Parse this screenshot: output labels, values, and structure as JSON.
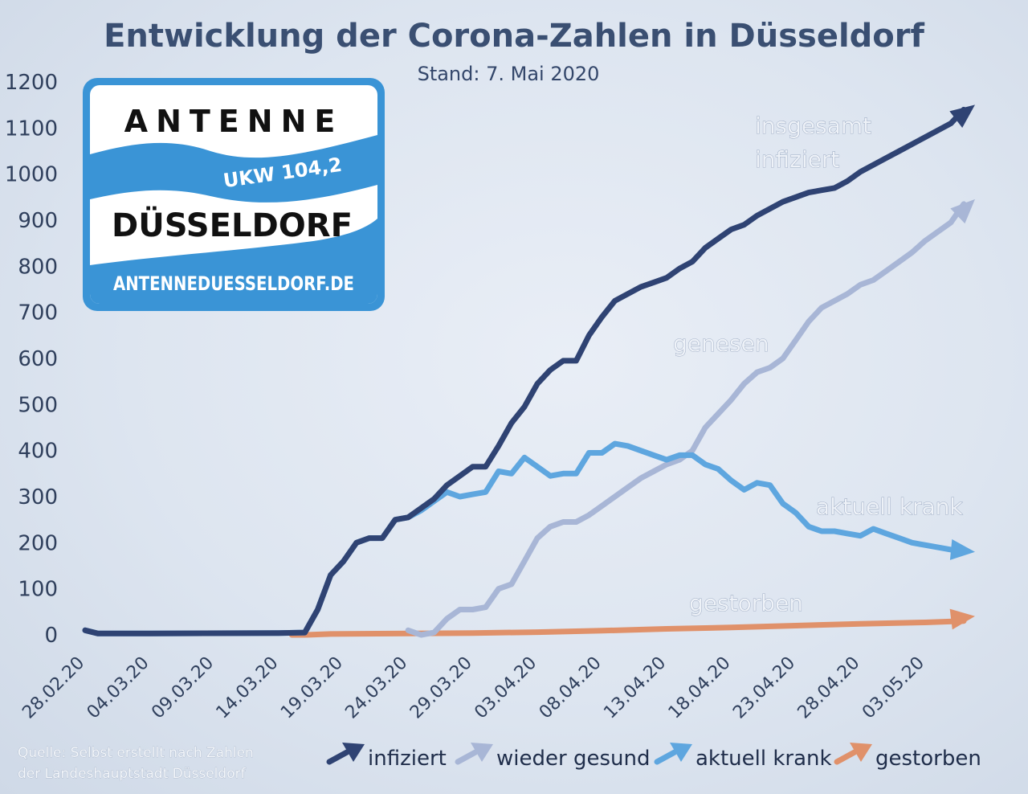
{
  "chart_data": {
    "type": "line",
    "title": "Entwicklung der Corona-Zahlen in Düsseldorf",
    "subtitle": "Stand: 7. Mai 2020",
    "x_tick_labels": [
      "28.02.20",
      "04.03.20",
      "09.03.20",
      "14.03.20",
      "19.03.20",
      "24.03.20",
      "29.03.20",
      "03.04.20",
      "08.04.20",
      "13.04.20",
      "18.04.20",
      "23.04.20",
      "28.04.20",
      "03.05.20"
    ],
    "x_start": "28.02.20",
    "x_end": "06.05.20",
    "ylim": [
      0,
      1200
    ],
    "y_ticks": [
      0,
      100,
      200,
      300,
      400,
      500,
      600,
      700,
      800,
      900,
      1000,
      1100,
      1200
    ],
    "grid": false,
    "legend_position": "bottom-right",
    "series": [
      {
        "name": "infiziert",
        "label": "insgesamt infiziert",
        "label_lines": [
          "insgesamt",
          "infiziert"
        ],
        "color": "#2f4373",
        "points": [
          [
            "28.02.20",
            10
          ],
          [
            "29.02.20",
            3
          ],
          [
            "04.03.20",
            3
          ],
          [
            "14.03.20",
            4
          ],
          [
            "16.03.20",
            5
          ],
          [
            "17.03.20",
            55
          ],
          [
            "18.03.20",
            130
          ],
          [
            "19.03.20",
            160
          ],
          [
            "20.03.20",
            200
          ],
          [
            "21.03.20",
            210
          ],
          [
            "22.03.20",
            210
          ],
          [
            "23.03.20",
            250
          ],
          [
            "24.03.20",
            255
          ],
          [
            "25.03.20",
            275
          ],
          [
            "26.03.20",
            295
          ],
          [
            "27.03.20",
            325
          ],
          [
            "28.03.20",
            345
          ],
          [
            "29.03.20",
            365
          ],
          [
            "30.03.20",
            365
          ],
          [
            "31.03.20",
            410
          ],
          [
            "01.04.20",
            460
          ],
          [
            "02.04.20",
            495
          ],
          [
            "03.04.20",
            545
          ],
          [
            "04.04.20",
            575
          ],
          [
            "05.04.20",
            595
          ],
          [
            "06.04.20",
            595
          ],
          [
            "07.04.20",
            650
          ],
          [
            "08.04.20",
            690
          ],
          [
            "09.04.20",
            725
          ],
          [
            "10.04.20",
            740
          ],
          [
            "11.04.20",
            755
          ],
          [
            "12.04.20",
            765
          ],
          [
            "13.04.20",
            775
          ],
          [
            "14.04.20",
            795
          ],
          [
            "15.04.20",
            810
          ],
          [
            "16.04.20",
            840
          ],
          [
            "17.04.20",
            860
          ],
          [
            "18.04.20",
            880
          ],
          [
            "19.04.20",
            890
          ],
          [
            "20.04.20",
            910
          ],
          [
            "21.04.20",
            925
          ],
          [
            "22.04.20",
            940
          ],
          [
            "23.04.20",
            950
          ],
          [
            "24.04.20",
            960
          ],
          [
            "25.04.20",
            965
          ],
          [
            "26.04.20",
            970
          ],
          [
            "27.04.20",
            985
          ],
          [
            "28.04.20",
            1005
          ],
          [
            "29.04.20",
            1020
          ],
          [
            "30.04.20",
            1035
          ],
          [
            "01.05.20",
            1050
          ],
          [
            "02.05.20",
            1065
          ],
          [
            "03.05.20",
            1080
          ],
          [
            "04.05.20",
            1095
          ],
          [
            "05.05.20",
            1110
          ],
          [
            "06.05.20",
            1140
          ]
        ]
      },
      {
        "name": "wieder gesund",
        "label": "genesen",
        "color": "#a8b6d6",
        "points": [
          [
            "24.03.20",
            10
          ],
          [
            "25.03.20",
            0
          ],
          [
            "26.03.20",
            5
          ],
          [
            "27.03.20",
            35
          ],
          [
            "28.03.20",
            55
          ],
          [
            "29.03.20",
            55
          ],
          [
            "30.03.20",
            60
          ],
          [
            "31.03.20",
            100
          ],
          [
            "01.04.20",
            110
          ],
          [
            "02.04.20",
            160
          ],
          [
            "03.04.20",
            210
          ],
          [
            "04.04.20",
            235
          ],
          [
            "05.04.20",
            245
          ],
          [
            "06.04.20",
            245
          ],
          [
            "07.04.20",
            260
          ],
          [
            "08.04.20",
            280
          ],
          [
            "09.04.20",
            300
          ],
          [
            "10.04.20",
            320
          ],
          [
            "11.04.20",
            340
          ],
          [
            "12.04.20",
            355
          ],
          [
            "13.04.20",
            370
          ],
          [
            "14.04.20",
            380
          ],
          [
            "15.04.20",
            400
          ],
          [
            "16.04.20",
            450
          ],
          [
            "17.04.20",
            480
          ],
          [
            "18.04.20",
            510
          ],
          [
            "19.04.20",
            545
          ],
          [
            "20.04.20",
            570
          ],
          [
            "21.04.20",
            580
          ],
          [
            "22.04.20",
            600
          ],
          [
            "23.04.20",
            640
          ],
          [
            "24.04.20",
            680
          ],
          [
            "25.04.20",
            710
          ],
          [
            "26.04.20",
            725
          ],
          [
            "27.04.20",
            740
          ],
          [
            "28.04.20",
            760
          ],
          [
            "29.04.20",
            770
          ],
          [
            "30.04.20",
            790
          ],
          [
            "01.05.20",
            810
          ],
          [
            "02.05.20",
            830
          ],
          [
            "03.05.20",
            855
          ],
          [
            "04.05.20",
            875
          ],
          [
            "05.05.20",
            895
          ],
          [
            "06.05.20",
            935
          ]
        ]
      },
      {
        "name": "aktuell krank",
        "label": "aktuell krank",
        "color": "#5ea6df",
        "points": [
          [
            "28.02.20",
            10
          ],
          [
            "29.02.20",
            3
          ],
          [
            "04.03.20",
            3
          ],
          [
            "14.03.20",
            4
          ],
          [
            "16.03.20",
            5
          ],
          [
            "17.03.20",
            55
          ],
          [
            "18.03.20",
            130
          ],
          [
            "19.03.20",
            160
          ],
          [
            "20.03.20",
            200
          ],
          [
            "21.03.20",
            210
          ],
          [
            "22.03.20",
            210
          ],
          [
            "23.03.20",
            250
          ],
          [
            "24.03.20",
            255
          ],
          [
            "25.03.20",
            270
          ],
          [
            "26.03.20",
            290
          ],
          [
            "27.03.20",
            310
          ],
          [
            "28.03.20",
            300
          ],
          [
            "29.03.20",
            305
          ],
          [
            "30.03.20",
            310
          ],
          [
            "31.03.20",
            355
          ],
          [
            "01.04.20",
            350
          ],
          [
            "02.04.20",
            385
          ],
          [
            "03.04.20",
            365
          ],
          [
            "04.04.20",
            345
          ],
          [
            "05.04.20",
            350
          ],
          [
            "06.04.20",
            350
          ],
          [
            "07.04.20",
            395
          ],
          [
            "08.04.20",
            395
          ],
          [
            "09.04.20",
            415
          ],
          [
            "10.04.20",
            410
          ],
          [
            "11.04.20",
            400
          ],
          [
            "12.04.20",
            390
          ],
          [
            "13.04.20",
            380
          ],
          [
            "14.04.20",
            390
          ],
          [
            "15.04.20",
            390
          ],
          [
            "16.04.20",
            370
          ],
          [
            "17.04.20",
            360
          ],
          [
            "18.04.20",
            335
          ],
          [
            "19.04.20",
            315
          ],
          [
            "20.04.20",
            330
          ],
          [
            "21.04.20",
            325
          ],
          [
            "22.04.20",
            285
          ],
          [
            "23.04.20",
            265
          ],
          [
            "24.04.20",
            235
          ],
          [
            "25.04.20",
            225
          ],
          [
            "26.04.20",
            225
          ],
          [
            "27.04.20",
            220
          ],
          [
            "28.04.20",
            215
          ],
          [
            "29.04.20",
            230
          ],
          [
            "30.04.20",
            220
          ],
          [
            "01.05.20",
            210
          ],
          [
            "02.05.20",
            200
          ],
          [
            "03.05.20",
            195
          ],
          [
            "04.05.20",
            190
          ],
          [
            "05.05.20",
            185
          ],
          [
            "06.05.20",
            180
          ]
        ]
      },
      {
        "name": "gestorben",
        "label": "gestorben",
        "color": "#e0916a",
        "points": [
          [
            "15.03.20",
            0
          ],
          [
            "16.03.20",
            0
          ],
          [
            "18.03.20",
            2
          ],
          [
            "24.03.20",
            3
          ],
          [
            "29.03.20",
            4
          ],
          [
            "03.04.20",
            6
          ],
          [
            "08.04.20",
            9
          ],
          [
            "13.04.20",
            13
          ],
          [
            "18.04.20",
            16
          ],
          [
            "23.04.20",
            20
          ],
          [
            "28.04.20",
            24
          ],
          [
            "03.05.20",
            27
          ],
          [
            "06.05.20",
            30
          ]
        ]
      }
    ]
  },
  "source_note_lines": [
    "Quelle: Selbst erstellt nach Zahlen",
    "der Landeshauptstadt  Düsseldorf"
  ],
  "logo": {
    "top_text": "ANTENNE",
    "band_text": "UKW 104,2",
    "bottom_text": "DÜSSELDORF",
    "url": "ANTENNEDUESSELDORF.DE",
    "blue": "#3a94d6"
  }
}
